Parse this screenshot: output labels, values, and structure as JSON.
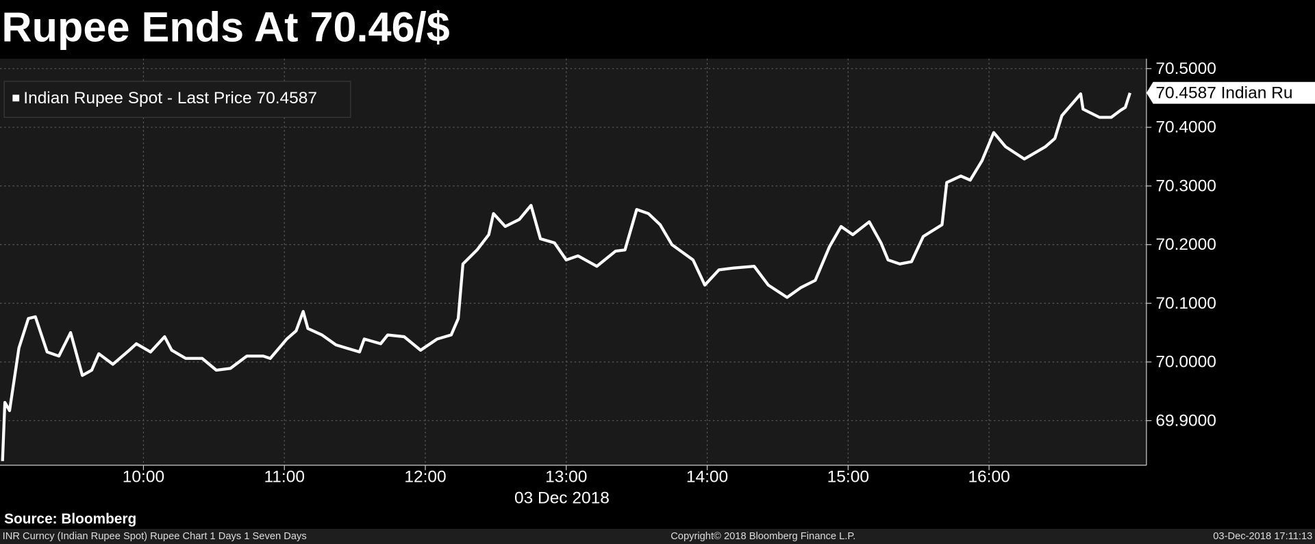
{
  "chart_data": {
    "type": "line",
    "title": "Rupee Ends At 70.46/$",
    "x": [
      "09:00",
      "09:01",
      "09:03",
      "09:07",
      "09:11",
      "09:14",
      "09:19",
      "09:24",
      "09:29",
      "09:34",
      "09:38",
      "09:41",
      "09:47",
      "09:54",
      "09:57",
      "10:03",
      "10:09",
      "10:12",
      "10:18",
      "10:25",
      "10:31",
      "10:37",
      "10:44",
      "10:51",
      "10:54",
      "11:01",
      "11:05",
      "11:08",
      "11:10",
      "11:16",
      "11:22",
      "11:32",
      "11:34",
      "11:41",
      "11:44",
      "11:51",
      "11:58",
      "12:05",
      "12:11",
      "12:14",
      "12:16",
      "12:22",
      "12:27",
      "12:29",
      "12:34",
      "12:40",
      "12:45",
      "12:49",
      "12:55",
      "13:00",
      "13:05",
      "13:13",
      "13:21",
      "13:25",
      "13:30",
      "13:35",
      "13:40",
      "13:45",
      "13:54",
      "13:59",
      "14:05",
      "14:11",
      "14:20",
      "14:26",
      "14:34",
      "14:40",
      "14:46",
      "14:52",
      "14:57",
      "15:02",
      "15:09",
      "15:14",
      "15:17",
      "15:22",
      "15:27",
      "15:32",
      "15:40",
      "15:42",
      "15:48",
      "15:52",
      "15:57",
      "16:02",
      "16:07",
      "16:15",
      "16:24",
      "16:28",
      "16:31",
      "16:39",
      "16:40",
      "16:47",
      "16:52",
      "16:56",
      "16:58",
      "17:00"
    ],
    "series": [
      {
        "name": "Indian Rupee Spot - Last Price 70.4587",
        "color": "#ffffff",
        "values": [
          69.831,
          69.931,
          69.917,
          70.024,
          70.074,
          70.077,
          70.017,
          70.01,
          70.05,
          69.977,
          69.986,
          70.014,
          69.996,
          70.02,
          70.031,
          70.017,
          70.043,
          70.02,
          70.006,
          70.006,
          69.986,
          69.989,
          70.01,
          70.01,
          70.006,
          70.039,
          70.053,
          70.086,
          70.057,
          70.046,
          70.029,
          70.017,
          70.039,
          70.031,
          70.046,
          70.043,
          70.02,
          70.039,
          70.046,
          70.074,
          70.167,
          70.191,
          70.217,
          70.253,
          70.231,
          70.243,
          70.267,
          70.21,
          70.203,
          70.174,
          70.181,
          70.163,
          70.189,
          70.191,
          70.26,
          70.253,
          70.234,
          70.2,
          70.174,
          70.131,
          70.157,
          70.16,
          70.163,
          70.131,
          70.11,
          70.127,
          70.139,
          70.196,
          70.231,
          70.217,
          70.239,
          70.203,
          70.174,
          70.167,
          70.171,
          70.214,
          70.234,
          70.306,
          70.317,
          70.31,
          70.343,
          70.391,
          70.367,
          70.346,
          70.367,
          70.381,
          70.42,
          70.457,
          70.431,
          70.417,
          70.417,
          70.429,
          70.434,
          70.4587
        ]
      }
    ],
    "last_label": "70.4587 Indian Ru",
    "xlim": [
      "09:00",
      "17:07"
    ],
    "xticks": [
      "10:00",
      "11:00",
      "12:00",
      "13:00",
      "14:00",
      "15:00",
      "16:00"
    ],
    "x_date_label": "03 Dec 2018",
    "ylim": [
      69.824,
      70.517
    ],
    "yticks": [
      {
        "value": 69.9,
        "label": "69.9000"
      },
      {
        "value": 70,
        "label": "70.0000"
      },
      {
        "value": 70.1,
        "label": "70.1000"
      },
      {
        "value": 70.2,
        "label": "70.2000"
      },
      {
        "value": 70.3,
        "label": "70.3000"
      },
      {
        "value": 70.4,
        "label": "70.4000"
      },
      {
        "value": 70.5,
        "label": "70.5000"
      }
    ],
    "grid": true,
    "y_axis_side": "right",
    "source": "Source: Bloomberg",
    "footer_left": "INR Curncy (Indian Rupee Spot) Rupee Chart 1 Days 1 Seven Days",
    "footer_center": "Copyright© 2018 Bloomberg Finance L.P.",
    "footer_right": "03-Dec-2018 17:11:13"
  }
}
